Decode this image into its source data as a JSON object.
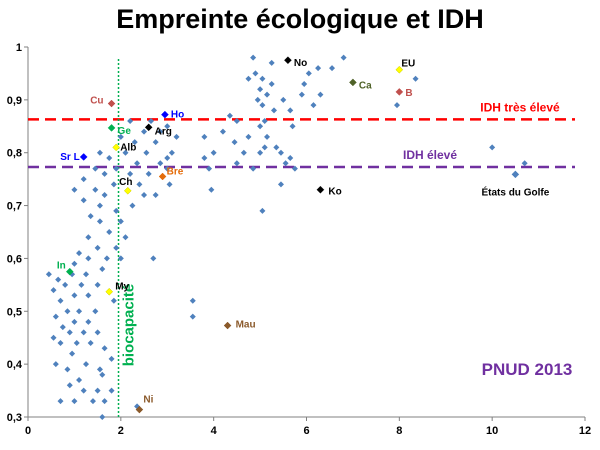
{
  "colors": {
    "point": "#4F81BD",
    "very_high_line": "#FF0000",
    "high_line": "#7030A0",
    "biocapacity_line": "#00B050",
    "source": "#7030A0"
  },
  "chart_data": {
    "type": "scatter",
    "title": "Empreinte écologique et IDH",
    "xlabel": "",
    "ylabel": "",
    "xlim": [
      0,
      12
    ],
    "ylim": [
      0.3,
      1.0
    ],
    "x_ticks": [
      "0",
      "2",
      "4",
      "6",
      "8",
      "10",
      "12"
    ],
    "y_ticks": [
      "0,3",
      "0,4",
      "0,5",
      "0,6",
      "0,7",
      "0,8",
      "0,9",
      "1"
    ],
    "grid": false,
    "source_label": "PNUD 2013",
    "reference_lines": [
      {
        "orientation": "horizontal",
        "value": 0.863,
        "label": "IDH très élevé",
        "color": "#FF0000",
        "style": "dashed"
      },
      {
        "orientation": "horizontal",
        "value": 0.773,
        "label": "IDH élevé",
        "color": "#7030A0",
        "style": "dashed"
      },
      {
        "orientation": "vertical",
        "value": 1.95,
        "label": "biocapacité",
        "color": "#00B050",
        "style": "dotted"
      }
    ],
    "highlighted": [
      {
        "label": "No",
        "x": 5.6,
        "y": 0.975,
        "color": "#000000"
      },
      {
        "label": "EU",
        "x": 8.0,
        "y": 0.957,
        "color": "#FFFF00"
      },
      {
        "label": "Ca",
        "x": 7.0,
        "y": 0.933,
        "color": "#4F6228"
      },
      {
        "label": "B",
        "x": 8.0,
        "y": 0.915,
        "color": "#C0504D"
      },
      {
        "label": "Cu",
        "x": 1.8,
        "y": 0.893,
        "color": "#C0504D"
      },
      {
        "label": "Ho",
        "x": 2.95,
        "y": 0.872,
        "color": "#0000FF"
      },
      {
        "label": "Ge",
        "x": 1.8,
        "y": 0.847,
        "color": "#00B050"
      },
      {
        "label": "Arg",
        "x": 2.6,
        "y": 0.848,
        "color": "#000000"
      },
      {
        "label": "Alb",
        "x": 1.9,
        "y": 0.81,
        "color": "#FFFF00"
      },
      {
        "label": "Sr L",
        "x": 1.2,
        "y": 0.792,
        "color": "#0000FF"
      },
      {
        "label": "Bre",
        "x": 2.9,
        "y": 0.755,
        "color": "#E46C0A"
      },
      {
        "label": "Ch",
        "x": 2.15,
        "y": 0.728,
        "color": "#FFFF00"
      },
      {
        "label": "Ko",
        "x": 6.3,
        "y": 0.73,
        "color": "#000000"
      },
      {
        "label": "États du Golfe",
        "x": 10.5,
        "y": 0.759,
        "color": "#4F81BD"
      },
      {
        "label": "In",
        "x": 0.9,
        "y": 0.575,
        "color": "#00B050"
      },
      {
        "label": "My",
        "x": 1.75,
        "y": 0.537,
        "color": "#FFFF00"
      },
      {
        "label": "Mau",
        "x": 4.3,
        "y": 0.473,
        "color": "#8B5A2B"
      },
      {
        "label": "Ni",
        "x": 2.4,
        "y": 0.314,
        "color": "#8B5A2B"
      }
    ],
    "points": [
      [
        0.7,
        0.33
      ],
      [
        1.0,
        0.33
      ],
      [
        1.4,
        0.33
      ],
      [
        1.65,
        0.33
      ],
      [
        2.35,
        0.32
      ],
      [
        1.2,
        0.35
      ],
      [
        1.5,
        0.35
      ],
      [
        1.8,
        0.35
      ],
      [
        0.9,
        0.36
      ],
      [
        1.1,
        0.37
      ],
      [
        1.6,
        0.38
      ],
      [
        0.6,
        0.4
      ],
      [
        0.85,
        0.39
      ],
      [
        1.25,
        0.4
      ],
      [
        1.55,
        0.39
      ],
      [
        1.8,
        0.41
      ],
      [
        0.95,
        0.42
      ],
      [
        0.7,
        0.44
      ],
      [
        1.05,
        0.44
      ],
      [
        1.35,
        0.44
      ],
      [
        1.65,
        0.43
      ],
      [
        0.55,
        0.45
      ],
      [
        0.9,
        0.46
      ],
      [
        1.2,
        0.46
      ],
      [
        1.5,
        0.46
      ],
      [
        0.75,
        0.47
      ],
      [
        1.0,
        0.48
      ],
      [
        1.3,
        0.48
      ],
      [
        0.6,
        0.49
      ],
      [
        0.85,
        0.5
      ],
      [
        1.1,
        0.5
      ],
      [
        1.45,
        0.5
      ],
      [
        1.85,
        0.52
      ],
      [
        0.7,
        0.52
      ],
      [
        1.0,
        0.53
      ],
      [
        1.3,
        0.53
      ],
      [
        0.55,
        0.54
      ],
      [
        0.8,
        0.55
      ],
      [
        1.15,
        0.55
      ],
      [
        1.5,
        0.55
      ],
      [
        0.65,
        0.56
      ],
      [
        0.95,
        0.57
      ],
      [
        1.25,
        0.57
      ],
      [
        0.45,
        0.57
      ],
      [
        1.6,
        0.58
      ],
      [
        1.0,
        0.59
      ],
      [
        1.3,
        0.6
      ],
      [
        1.7,
        0.6
      ],
      [
        2.0,
        0.6
      ],
      [
        1.1,
        0.61
      ],
      [
        1.5,
        0.62
      ],
      [
        1.9,
        0.62
      ],
      [
        2.1,
        0.64
      ],
      [
        1.3,
        0.64
      ],
      [
        1.75,
        0.65
      ],
      [
        1.55,
        0.67
      ],
      [
        2.0,
        0.67
      ],
      [
        1.35,
        0.68
      ],
      [
        1.9,
        0.69
      ],
      [
        1.55,
        0.7
      ],
      [
        2.25,
        0.7
      ],
      [
        1.2,
        0.71
      ],
      [
        1.65,
        0.72
      ],
      [
        2.5,
        0.72
      ],
      [
        2.75,
        0.72
      ],
      [
        1.0,
        0.73
      ],
      [
        1.45,
        0.73
      ],
      [
        1.85,
        0.74
      ],
      [
        2.4,
        0.74
      ],
      [
        3.05,
        0.74
      ],
      [
        1.2,
        0.75
      ],
      [
        1.65,
        0.76
      ],
      [
        2.2,
        0.76
      ],
      [
        2.6,
        0.76
      ],
      [
        1.45,
        0.77
      ],
      [
        1.9,
        0.77
      ],
      [
        2.35,
        0.78
      ],
      [
        2.85,
        0.78
      ],
      [
        1.75,
        0.79
      ],
      [
        2.1,
        0.8
      ],
      [
        2.55,
        0.8
      ],
      [
        3.0,
        0.79
      ],
      [
        1.55,
        0.8
      ],
      [
        2.3,
        0.82
      ],
      [
        2.75,
        0.82
      ],
      [
        3.1,
        0.8
      ],
      [
        2.0,
        0.83
      ],
      [
        2.5,
        0.84
      ],
      [
        2.85,
        0.84
      ],
      [
        3.2,
        0.83
      ],
      [
        2.2,
        0.86
      ],
      [
        2.65,
        0.86
      ],
      [
        3.0,
        0.85
      ],
      [
        2.7,
        0.6
      ],
      [
        1.6,
        0.3
      ],
      [
        3.55,
        0.52
      ],
      [
        3.55,
        0.49
      ],
      [
        3.9,
        0.77
      ],
      [
        3.8,
        0.79
      ],
      [
        4.0,
        0.8
      ],
      [
        3.95,
        0.73
      ],
      [
        4.45,
        0.82
      ],
      [
        4.65,
        0.8
      ],
      [
        4.75,
        0.83
      ],
      [
        5.0,
        0.8
      ],
      [
        5.1,
        0.81
      ],
      [
        5.15,
        0.83
      ],
      [
        5.35,
        0.81
      ],
      [
        5.45,
        0.8
      ],
      [
        5.65,
        0.79
      ],
      [
        5.55,
        0.78
      ],
      [
        4.5,
        0.78
      ],
      [
        4.85,
        0.77
      ],
      [
        5.05,
        0.69
      ],
      [
        5.45,
        0.74
      ],
      [
        5.75,
        0.77
      ],
      [
        4.2,
        0.84
      ],
      [
        4.5,
        0.86
      ],
      [
        4.35,
        0.87
      ],
      [
        3.8,
        0.83
      ],
      [
        5.0,
        0.85
      ],
      [
        5.7,
        0.85
      ],
      [
        4.75,
        0.94
      ],
      [
        4.9,
        0.95
      ],
      [
        5.05,
        0.94
      ],
      [
        5.25,
        0.93
      ],
      [
        4.95,
        0.9
      ],
      [
        5.15,
        0.91
      ],
      [
        5.05,
        0.89
      ],
      [
        5.3,
        0.88
      ],
      [
        5.5,
        0.9
      ],
      [
        5.65,
        0.88
      ],
      [
        5.9,
        0.91
      ],
      [
        5.95,
        0.93
      ],
      [
        6.05,
        0.95
      ],
      [
        6.25,
        0.96
      ],
      [
        6.55,
        0.96
      ],
      [
        6.15,
        0.89
      ],
      [
        6.3,
        0.91
      ],
      [
        4.85,
        0.98
      ],
      [
        5.25,
        0.97
      ],
      [
        5.0,
        0.92
      ],
      [
        6.8,
        0.98
      ],
      [
        5.1,
        0.86
      ],
      [
        3.0,
        0.77
      ],
      [
        10.0,
        0.81
      ],
      [
        10.7,
        0.78
      ],
      [
        8.35,
        0.94
      ],
      [
        7.95,
        0.89
      ]
    ]
  }
}
